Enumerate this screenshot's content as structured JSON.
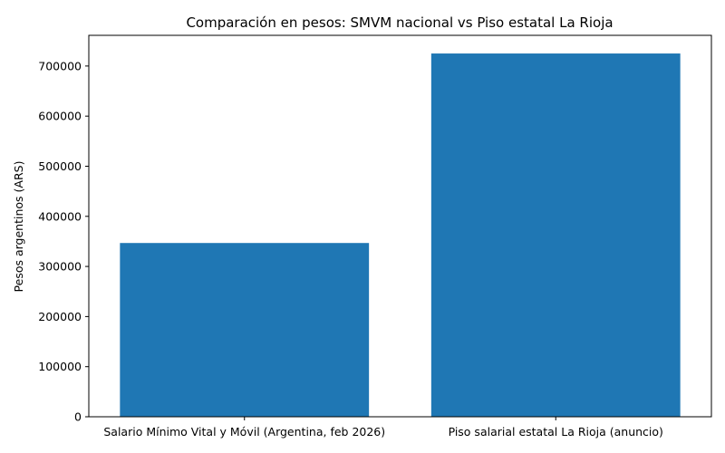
{
  "chart_data": {
    "type": "bar",
    "title": "Comparación en pesos: SMVM nacional vs Piso estatal La Rioja",
    "xlabel": "",
    "ylabel": "Pesos argentinos (ARS)",
    "categories": [
      "Salario Mínimo Vital y Móvil (Argentina, feb 2026)",
      "Piso salarial estatal La Rioja (anuncio)"
    ],
    "values": [
      346800,
      725000
    ],
    "ylim": [
      0,
      761250
    ],
    "yticks": [
      0,
      100000,
      200000,
      300000,
      400000,
      500000,
      600000,
      700000
    ],
    "bar_color": "#1f77b4",
    "grid": false,
    "legend": "none"
  }
}
